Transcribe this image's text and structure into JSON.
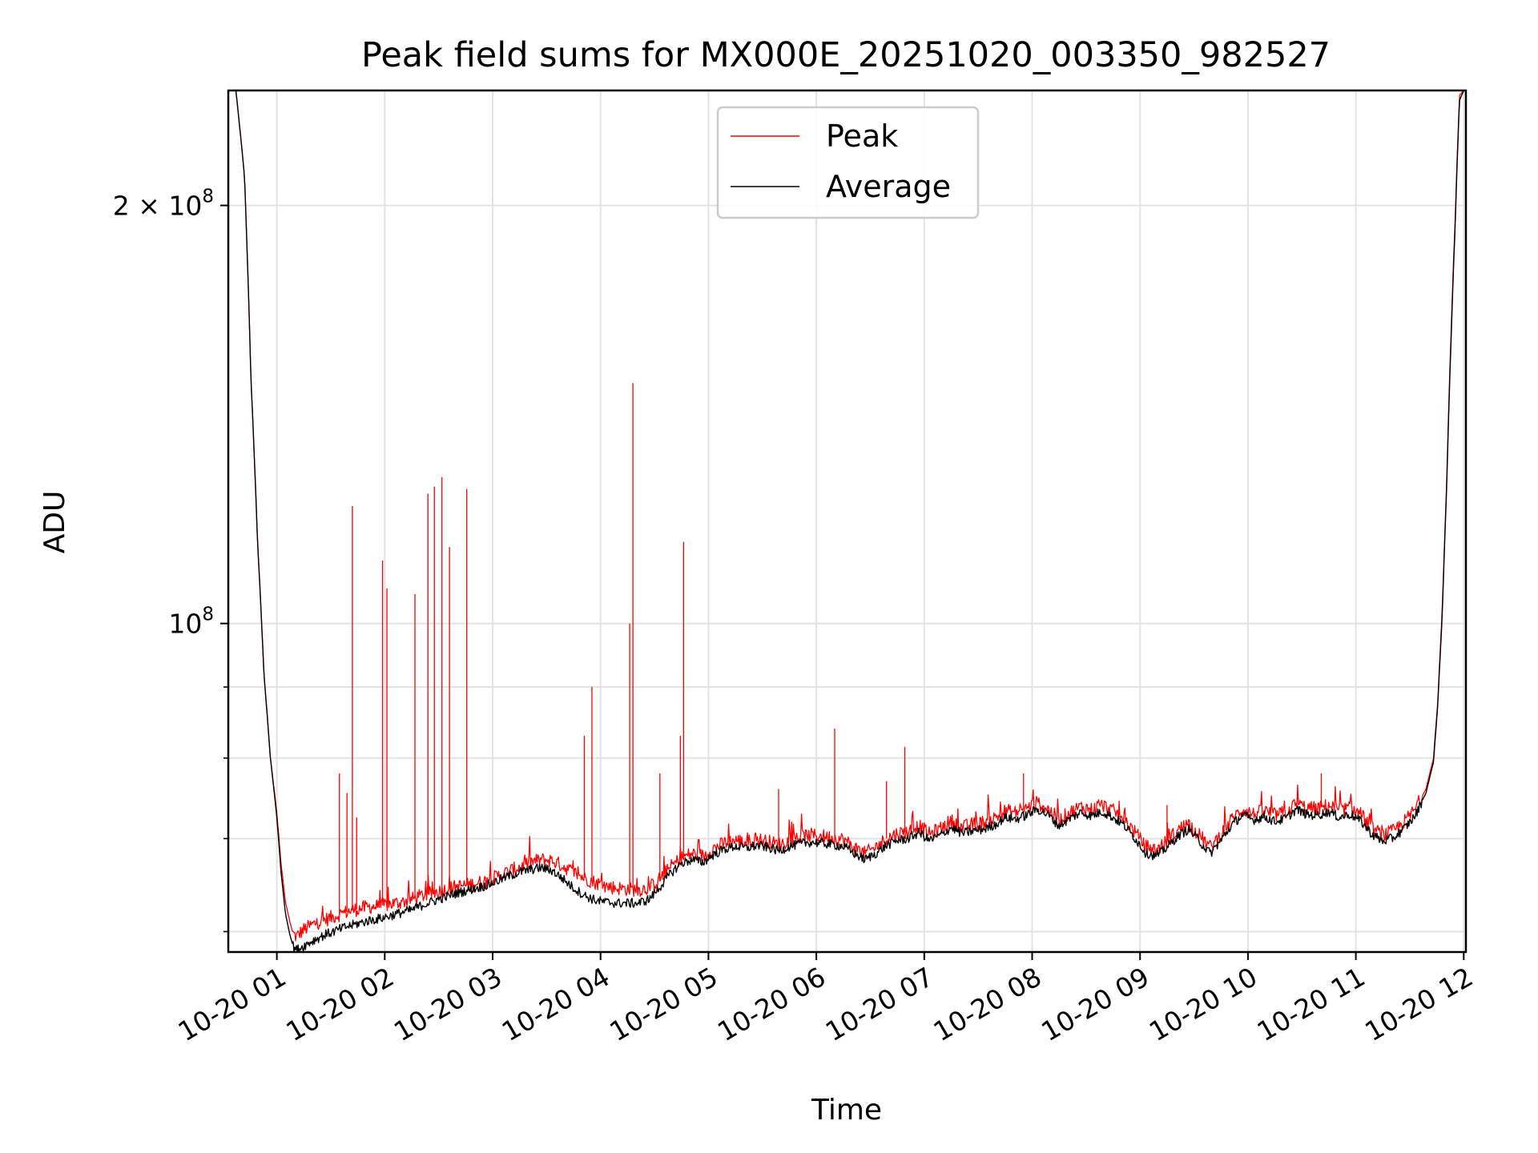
{
  "chart_data": {
    "type": "line",
    "title": "Peak field sums for MX000E_20251020_003350_982527",
    "xlabel": "Time",
    "ylabel": "ADU",
    "yscale": "log",
    "ylim": [
      58000000,
      242000000
    ],
    "xlim": [
      0.55,
      12.02
    ],
    "x_unit": "hours on 2025-10-20",
    "x_ticks": [
      {
        "value": 1,
        "label": "10-20 01"
      },
      {
        "value": 2,
        "label": "10-20 02"
      },
      {
        "value": 3,
        "label": "10-20 03"
      },
      {
        "value": 4,
        "label": "10-20 04"
      },
      {
        "value": 5,
        "label": "10-20 05"
      },
      {
        "value": 6,
        "label": "10-20 06"
      },
      {
        "value": 7,
        "label": "10-20 07"
      },
      {
        "value": 8,
        "label": "10-20 08"
      },
      {
        "value": 9,
        "label": "10-20 09"
      },
      {
        "value": 10,
        "label": "10-20 10"
      },
      {
        "value": 11,
        "label": "10-20 11"
      },
      {
        "value": 12,
        "label": "10-20 12"
      }
    ],
    "y_major_ticks": [
      {
        "value": 100000000,
        "base": "10",
        "exp": "8",
        "prefix": ""
      },
      {
        "value": 200000000,
        "base": "10",
        "exp": "8",
        "prefix": "2 × "
      }
    ],
    "y_minor_ticks": [
      60000000,
      70000000,
      80000000,
      90000000
    ],
    "legend": {
      "location": "upper center",
      "entries": [
        "Peak",
        "Average"
      ]
    },
    "series": [
      {
        "name": "Peak",
        "color": "#ff0000",
        "x": [
          0.62,
          0.7,
          0.76,
          0.82,
          0.88,
          0.94,
          1.0,
          1.04,
          1.08,
          1.12,
          1.15,
          1.18,
          1.25,
          1.35,
          1.45,
          1.55,
          1.65,
          1.75,
          1.85,
          1.95,
          2.05,
          2.15,
          2.25,
          2.35,
          2.45,
          2.55,
          2.65,
          2.75,
          2.85,
          2.95,
          3.05,
          3.15,
          3.25,
          3.35,
          3.45,
          3.55,
          3.65,
          3.75,
          3.85,
          3.95,
          4.05,
          4.15,
          4.25,
          4.35,
          4.45,
          4.55,
          4.65,
          4.75,
          4.85,
          4.95,
          5.05,
          5.15,
          5.25,
          5.35,
          5.45,
          5.55,
          5.65,
          5.75,
          5.85,
          5.95,
          6.05,
          6.15,
          6.25,
          6.35,
          6.45,
          6.55,
          6.65,
          6.75,
          6.85,
          6.95,
          7.05,
          7.15,
          7.25,
          7.35,
          7.45,
          7.55,
          7.65,
          7.75,
          7.85,
          7.95,
          8.05,
          8.15,
          8.25,
          8.35,
          8.45,
          8.55,
          8.65,
          8.75,
          8.85,
          8.95,
          9.05,
          9.15,
          9.25,
          9.35,
          9.45,
          9.55,
          9.65,
          9.75,
          9.85,
          9.95,
          10.05,
          10.15,
          10.25,
          10.35,
          10.45,
          10.55,
          10.65,
          10.75,
          10.85,
          10.95,
          11.05,
          11.15,
          11.25,
          11.35,
          11.45,
          11.55,
          11.65,
          11.72,
          11.76,
          11.8,
          11.84,
          11.88,
          11.92,
          11.96,
          12.0
        ],
        "y": [
          242000000,
          210000000,
          150000000,
          115000000,
          92000000,
          80000000,
          73000000,
          67000000,
          63000000,
          61000000,
          59800000,
          59500000,
          60200000,
          60800000,
          61200000,
          61600000,
          62000000,
          62300000,
          62500000,
          62600000,
          62800000,
          63000000,
          63300000,
          63700000,
          64000000,
          64300000,
          64600000,
          64800000,
          65000000,
          65300000,
          65800000,
          66300000,
          66800000,
          67300000,
          67600000,
          67500000,
          66900000,
          66200000,
          65600000,
          65100000,
          64700000,
          64500000,
          64400000,
          64300000,
          64500000,
          65500000,
          66800000,
          67800000,
          68300000,
          68000000,
          68900000,
          69500000,
          69800000,
          69600000,
          69900000,
          69700000,
          69300000,
          69800000,
          70200000,
          70400000,
          70300000,
          70100000,
          69900000,
          69000000,
          68300000,
          69000000,
          70000000,
          70600000,
          70800000,
          71500000,
          70500000,
          71200000,
          72100000,
          71300000,
          71700000,
          71900000,
          72400000,
          73300000,
          73100000,
          73600000,
          74300000,
          73500000,
          72200000,
          73100000,
          73800000,
          73500000,
          74000000,
          73300000,
          72300000,
          70800000,
          69100000,
          68700000,
          69700000,
          71000000,
          71800000,
          70400000,
          69000000,
          70500000,
          72300000,
          73500000,
          72900000,
          73300000,
          72800000,
          73100000,
          74200000,
          73600000,
          73600000,
          74000000,
          73300000,
          73700000,
          72800000,
          71200000,
          70400000,
          70900000,
          72000000,
          73500000,
          76000000,
          80000000,
          88000000,
          102000000,
          125000000,
          160000000,
          195000000,
          240000000,
          242000000
        ]
      },
      {
        "name": "Average",
        "color": "#000000",
        "x": [
          0.62,
          0.7,
          0.76,
          0.82,
          0.88,
          0.94,
          1.0,
          1.04,
          1.08,
          1.12,
          1.15,
          1.18,
          1.25,
          1.35,
          1.45,
          1.55,
          1.65,
          1.75,
          1.85,
          1.95,
          2.05,
          2.15,
          2.25,
          2.35,
          2.45,
          2.55,
          2.65,
          2.75,
          2.85,
          2.95,
          3.05,
          3.15,
          3.25,
          3.35,
          3.45,
          3.55,
          3.65,
          3.75,
          3.85,
          3.95,
          4.05,
          4.15,
          4.25,
          4.35,
          4.45,
          4.55,
          4.65,
          4.75,
          4.85,
          4.95,
          5.05,
          5.15,
          5.25,
          5.35,
          5.45,
          5.55,
          5.65,
          5.75,
          5.85,
          5.95,
          6.05,
          6.15,
          6.25,
          6.35,
          6.45,
          6.55,
          6.65,
          6.75,
          6.85,
          6.95,
          7.05,
          7.15,
          7.25,
          7.35,
          7.45,
          7.55,
          7.65,
          7.75,
          7.85,
          7.95,
          8.05,
          8.15,
          8.25,
          8.35,
          8.45,
          8.55,
          8.65,
          8.75,
          8.85,
          8.95,
          9.05,
          9.15,
          9.25,
          9.35,
          9.45,
          9.55,
          9.65,
          9.75,
          9.85,
          9.95,
          10.05,
          10.15,
          10.25,
          10.35,
          10.45,
          10.55,
          10.65,
          10.75,
          10.85,
          10.95,
          11.05,
          11.15,
          11.25,
          11.35,
          11.45,
          11.55,
          11.65,
          11.72,
          11.76,
          11.8,
          11.84,
          11.88,
          11.92,
          11.96,
          12.0
        ],
        "y": [
          242000000,
          210000000,
          150000000,
          115000000,
          92000000,
          80000000,
          72500000,
          66000000,
          61800000,
          59700000,
          58600000,
          58200000,
          58600000,
          59200000,
          59700000,
          60100000,
          60500000,
          60800000,
          61100000,
          61300000,
          61600000,
          61900000,
          62200000,
          62700000,
          63100000,
          63500000,
          63900000,
          64200000,
          64500000,
          64800000,
          65300000,
          65800000,
          66200000,
          66500000,
          66700000,
          66400000,
          65500000,
          64500000,
          63700000,
          63200000,
          63000000,
          62900000,
          62900000,
          62900000,
          63300000,
          64600000,
          66100000,
          67200000,
          67600000,
          67300000,
          68200000,
          68800000,
          69100000,
          68900000,
          69200000,
          69000000,
          68600000,
          69100000,
          69400000,
          69600000,
          69500000,
          69300000,
          69100000,
          68300000,
          67600000,
          68300000,
          69200000,
          69800000,
          70000000,
          70700000,
          69800000,
          70400000,
          71300000,
          70600000,
          70900000,
          71100000,
          71600000,
          72500000,
          72300000,
          72800000,
          73500000,
          72800000,
          71500000,
          72400000,
          73100000,
          72700000,
          73200000,
          72500000,
          71600000,
          70100000,
          68400000,
          68000000,
          69000000,
          70300000,
          71100000,
          69700000,
          68300000,
          69800000,
          71600000,
          72800000,
          72200000,
          72600000,
          72000000,
          72400000,
          73500000,
          72800000,
          72800000,
          73200000,
          72500000,
          72900000,
          72000000,
          70500000,
          69700000,
          70100000,
          71200000,
          72700000,
          75500000,
          79500000,
          87500000,
          101000000,
          124000000,
          158000000,
          193000000,
          238000000,
          242000000
        ]
      }
    ],
    "spikes": [
      {
        "x": 1.58,
        "y": 78000000
      },
      {
        "x": 1.65,
        "y": 75500000
      },
      {
        "x": 1.7,
        "y": 121500000
      },
      {
        "x": 1.74,
        "y": 72500000
      },
      {
        "x": 1.98,
        "y": 111000000
      },
      {
        "x": 2.02,
        "y": 106000000
      },
      {
        "x": 2.28,
        "y": 105000000
      },
      {
        "x": 2.4,
        "y": 124000000
      },
      {
        "x": 2.46,
        "y": 125500000
      },
      {
        "x": 2.53,
        "y": 127500000
      },
      {
        "x": 2.6,
        "y": 113500000
      },
      {
        "x": 2.76,
        "y": 125000000
      },
      {
        "x": 3.85,
        "y": 83000000
      },
      {
        "x": 3.92,
        "y": 90000000
      },
      {
        "x": 4.27,
        "y": 100000000
      },
      {
        "x": 4.3,
        "y": 149000000
      },
      {
        "x": 4.55,
        "y": 78000000
      },
      {
        "x": 4.74,
        "y": 83000000
      },
      {
        "x": 4.77,
        "y": 114500000
      },
      {
        "x": 5.65,
        "y": 76000000
      },
      {
        "x": 6.17,
        "y": 84000000
      },
      {
        "x": 6.65,
        "y": 77000000
      },
      {
        "x": 6.82,
        "y": 81500000
      },
      {
        "x": 7.92,
        "y": 78000000
      },
      {
        "x": 9.25,
        "y": 74000000
      },
      {
        "x": 10.68,
        "y": 78000000
      }
    ]
  }
}
